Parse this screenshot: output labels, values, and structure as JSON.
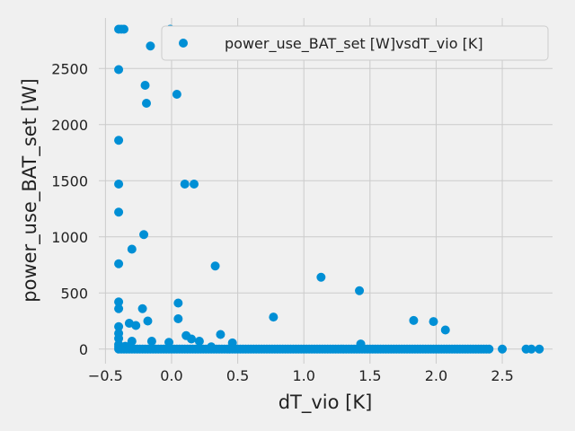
{
  "chart_data": {
    "type": "scatter",
    "xlabel": "dT_vio [K]",
    "ylabel": "power_use_BAT_set [W]",
    "xlim": [
      -0.55,
      2.88
    ],
    "ylim": [
      -130,
      2950
    ],
    "xticks": [
      "−0.5",
      "0.0",
      "0.5",
      "1.0",
      "1.5",
      "2.0",
      "2.5"
    ],
    "xtick_values": [
      -0.5,
      0.0,
      0.5,
      1.0,
      1.5,
      2.0,
      2.5
    ],
    "yticks": [
      "0",
      "500",
      "1000",
      "1500",
      "2000",
      "2500"
    ],
    "ytick_values": [
      0,
      500,
      1000,
      1500,
      2000,
      2500
    ],
    "grid": true,
    "legend": {
      "position": "top-right"
    },
    "colors": {
      "background": "#f0f0f0",
      "grid": "#cbcbcb",
      "marker": "#008fd5"
    },
    "series": [
      {
        "name": "power_use_BAT_set [W]vsdT_vio [K]",
        "points": [
          [
            -0.4,
            2850
          ],
          [
            -0.38,
            2850
          ],
          [
            -0.36,
            2850
          ],
          [
            -0.01,
            2850
          ],
          [
            -0.16,
            2700
          ],
          [
            -0.4,
            2490
          ],
          [
            -0.2,
            2350
          ],
          [
            0.04,
            2270
          ],
          [
            -0.19,
            2190
          ],
          [
            -0.4,
            1860
          ],
          [
            -0.4,
            1470
          ],
          [
            0.1,
            1470
          ],
          [
            0.17,
            1470
          ],
          [
            -0.4,
            1220
          ],
          [
            -0.21,
            1020
          ],
          [
            -0.3,
            890
          ],
          [
            -0.4,
            760
          ],
          [
            0.33,
            740
          ],
          [
            1.13,
            640
          ],
          [
            1.42,
            520
          ],
          [
            -0.4,
            420
          ],
          [
            0.05,
            410
          ],
          [
            -0.4,
            360
          ],
          [
            -0.22,
            360
          ],
          [
            0.77,
            285
          ],
          [
            0.05,
            270
          ],
          [
            -0.18,
            250
          ],
          [
            1.83,
            255
          ],
          [
            1.98,
            245
          ],
          [
            -0.32,
            230
          ],
          [
            -0.27,
            210
          ],
          [
            -0.4,
            200
          ],
          [
            2.07,
            170
          ],
          [
            -0.4,
            140
          ],
          [
            0.37,
            130
          ],
          [
            0.11,
            120
          ],
          [
            -0.4,
            95
          ],
          [
            0.15,
            90
          ],
          [
            -0.3,
            70
          ],
          [
            -0.15,
            70
          ],
          [
            -0.02,
            60
          ],
          [
            0.21,
            70
          ],
          [
            0.46,
            55
          ],
          [
            -0.4,
            40
          ],
          [
            1.43,
            45
          ],
          [
            -0.4,
            20
          ],
          [
            -0.35,
            25
          ],
          [
            0.3,
            20
          ],
          [
            -0.4,
            0
          ],
          [
            -0.38,
            0
          ],
          [
            -0.36,
            0
          ],
          [
            -0.34,
            0
          ],
          [
            -0.32,
            0
          ],
          [
            -0.3,
            0
          ],
          [
            -0.28,
            0
          ],
          [
            -0.26,
            0
          ],
          [
            -0.24,
            0
          ],
          [
            -0.22,
            0
          ],
          [
            -0.2,
            0
          ],
          [
            -0.18,
            0
          ],
          [
            -0.16,
            0
          ],
          [
            -0.14,
            0
          ],
          [
            -0.12,
            0
          ],
          [
            -0.1,
            0
          ],
          [
            -0.08,
            0
          ],
          [
            -0.06,
            0
          ],
          [
            -0.04,
            0
          ],
          [
            -0.02,
            0
          ],
          [
            0.0,
            0
          ],
          [
            0.02,
            0
          ],
          [
            0.04,
            0
          ],
          [
            0.06,
            0
          ],
          [
            0.08,
            0
          ],
          [
            0.1,
            0
          ],
          [
            0.12,
            0
          ],
          [
            0.14,
            0
          ],
          [
            0.16,
            0
          ],
          [
            0.18,
            0
          ],
          [
            0.2,
            0
          ],
          [
            0.22,
            0
          ],
          [
            0.24,
            0
          ],
          [
            0.26,
            0
          ],
          [
            0.28,
            0
          ],
          [
            0.3,
            0
          ],
          [
            0.32,
            0
          ],
          [
            0.34,
            0
          ],
          [
            0.36,
            0
          ],
          [
            0.38,
            0
          ],
          [
            0.4,
            0
          ],
          [
            0.42,
            0
          ],
          [
            0.44,
            0
          ],
          [
            0.46,
            0
          ],
          [
            0.48,
            0
          ],
          [
            0.5,
            0
          ],
          [
            0.52,
            0
          ],
          [
            0.54,
            0
          ],
          [
            0.56,
            0
          ],
          [
            0.58,
            0
          ],
          [
            0.6,
            0
          ],
          [
            0.62,
            0
          ],
          [
            0.64,
            0
          ],
          [
            0.66,
            0
          ],
          [
            0.68,
            0
          ],
          [
            0.7,
            0
          ],
          [
            0.72,
            0
          ],
          [
            0.74,
            0
          ],
          [
            0.76,
            0
          ],
          [
            0.78,
            0
          ],
          [
            0.8,
            0
          ],
          [
            0.82,
            0
          ],
          [
            0.84,
            0
          ],
          [
            0.86,
            0
          ],
          [
            0.88,
            0
          ],
          [
            0.9,
            0
          ],
          [
            0.92,
            0
          ],
          [
            0.94,
            0
          ],
          [
            0.96,
            0
          ],
          [
            0.98,
            0
          ],
          [
            1.0,
            0
          ],
          [
            1.02,
            0
          ],
          [
            1.04,
            0
          ],
          [
            1.06,
            0
          ],
          [
            1.08,
            0
          ],
          [
            1.1,
            0
          ],
          [
            1.12,
            0
          ],
          [
            1.14,
            0
          ],
          [
            1.16,
            0
          ],
          [
            1.18,
            0
          ],
          [
            1.2,
            0
          ],
          [
            1.22,
            0
          ],
          [
            1.24,
            0
          ],
          [
            1.26,
            0
          ],
          [
            1.28,
            0
          ],
          [
            1.3,
            0
          ],
          [
            1.32,
            0
          ],
          [
            1.34,
            0
          ],
          [
            1.36,
            0
          ],
          [
            1.38,
            0
          ],
          [
            1.4,
            0
          ],
          [
            1.42,
            0
          ],
          [
            1.44,
            0
          ],
          [
            1.46,
            0
          ],
          [
            1.48,
            0
          ],
          [
            1.5,
            0
          ],
          [
            1.52,
            0
          ],
          [
            1.54,
            0
          ],
          [
            1.56,
            0
          ],
          [
            1.58,
            0
          ],
          [
            1.6,
            0
          ],
          [
            1.62,
            0
          ],
          [
            1.64,
            0
          ],
          [
            1.66,
            0
          ],
          [
            1.68,
            0
          ],
          [
            1.7,
            0
          ],
          [
            1.72,
            0
          ],
          [
            1.74,
            0
          ],
          [
            1.76,
            0
          ],
          [
            1.78,
            0
          ],
          [
            1.8,
            0
          ],
          [
            1.82,
            0
          ],
          [
            1.84,
            0
          ],
          [
            1.86,
            0
          ],
          [
            1.88,
            0
          ],
          [
            1.9,
            0
          ],
          [
            1.92,
            0
          ],
          [
            1.94,
            0
          ],
          [
            1.96,
            0
          ],
          [
            1.98,
            0
          ],
          [
            2.0,
            0
          ],
          [
            2.02,
            0
          ],
          [
            2.04,
            0
          ],
          [
            2.06,
            0
          ],
          [
            2.08,
            0
          ],
          [
            2.1,
            0
          ],
          [
            2.12,
            0
          ],
          [
            2.14,
            0
          ],
          [
            2.16,
            0
          ],
          [
            2.18,
            0
          ],
          [
            2.2,
            0
          ],
          [
            2.22,
            0
          ],
          [
            2.24,
            0
          ],
          [
            2.26,
            0
          ],
          [
            2.28,
            0
          ],
          [
            2.3,
            0
          ],
          [
            2.32,
            0
          ],
          [
            2.34,
            0
          ],
          [
            2.36,
            0
          ],
          [
            2.38,
            0
          ],
          [
            2.4,
            0
          ],
          [
            2.5,
            0
          ],
          [
            2.68,
            0
          ],
          [
            2.72,
            0
          ],
          [
            2.78,
            0
          ]
        ]
      }
    ]
  }
}
